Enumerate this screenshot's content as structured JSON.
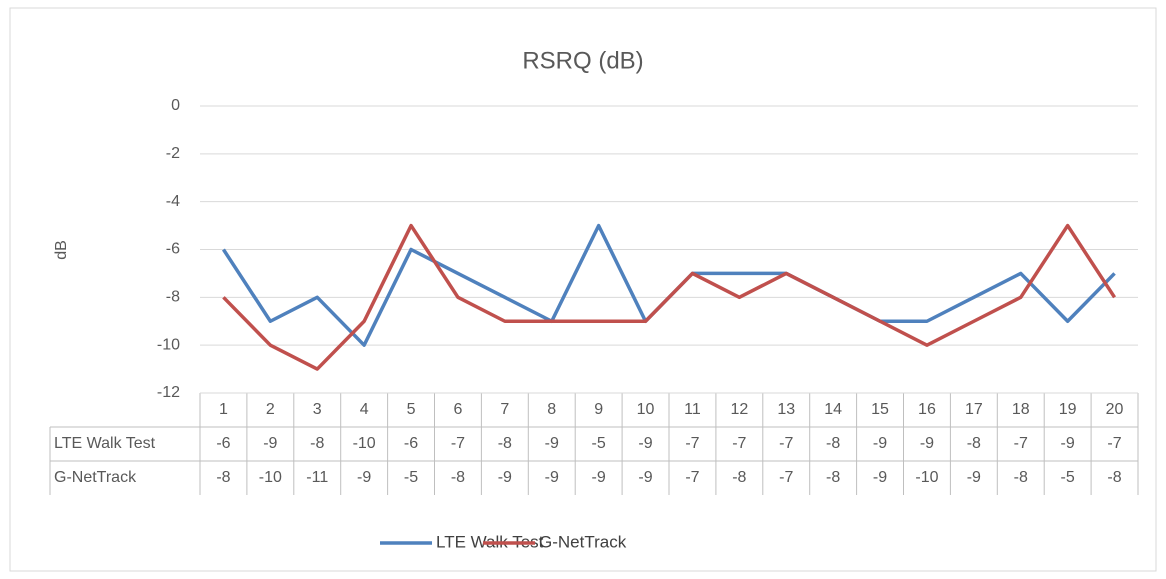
{
  "chart_data": {
    "type": "line",
    "title": "RSRQ (dB)",
    "y_label": "dB",
    "categories": [
      "1",
      "2",
      "3",
      "4",
      "5",
      "6",
      "7",
      "8",
      "9",
      "10",
      "11",
      "12",
      "13",
      "14",
      "15",
      "16",
      "17",
      "18",
      "19",
      "20"
    ],
    "series": [
      {
        "name": "LTE Walk Test",
        "color": "#4f81bd",
        "values": [
          -6,
          -9,
          -8,
          -10,
          -6,
          -7,
          -8,
          -9,
          -5,
          -9,
          -7,
          -7,
          -7,
          -8,
          -9,
          -9,
          -8,
          -7,
          -9,
          -7
        ]
      },
      {
        "name": "G-NetTrack",
        "color": "#c0504d",
        "values": [
          -8,
          -10,
          -11,
          -9,
          -5,
          -8,
          -9,
          -9,
          -9,
          -9,
          -7,
          -8,
          -7,
          -8,
          -9,
          -10,
          -9,
          -8,
          -5,
          -8
        ]
      }
    ],
    "ylim": [
      -12,
      0
    ],
    "yticks": [
      0,
      -2,
      -4,
      -6,
      -8,
      -10,
      -12
    ],
    "grid": true,
    "legend": "bottom"
  }
}
